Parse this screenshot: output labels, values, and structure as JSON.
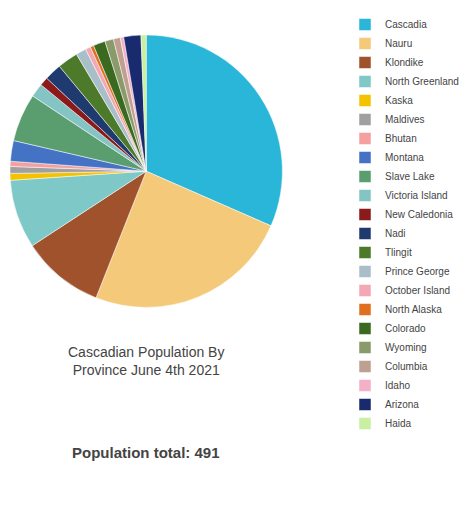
{
  "chart_data": {
    "type": "pie",
    "title": "Cascadian Population By\nProvince June 4th 2021",
    "subtitle": "Population total: 491",
    "categories": [
      "Cascadia",
      "Nauru",
      "Klondike",
      "North Greenland",
      "Kaska",
      "Maldives",
      "Bhutan",
      "Montana",
      "Slave Lake",
      "Victoria Island",
      "New Caledonia",
      "Nadi",
      "Tlingit",
      "Prince George",
      "October Island",
      "North Alaska",
      "Colorado",
      "Wyoming",
      "Columbia",
      "Idaho",
      "Arizona",
      "Haida"
    ],
    "values": [
      155,
      120,
      48,
      40,
      4,
      4,
      3,
      12,
      28,
      8,
      5,
      10,
      12,
      6,
      3,
      2,
      7,
      5,
      4,
      2,
      10,
      3
    ],
    "colors": [
      "#29B6D8",
      "#F5C97A",
      "#A0522D",
      "#7EC8C8",
      "#F5C200",
      "#A0A0A0",
      "#F4A0A0",
      "#4472C4",
      "#5A9E6F",
      "#85C4C4",
      "#8B1A1A",
      "#1F3A6E",
      "#4C7A2A",
      "#A8BFC9",
      "#F4A8B5",
      "#E07020",
      "#3A6A20",
      "#8A9A6A",
      "#BFA090",
      "#F4B0C8",
      "#1A2A6E",
      "#C8F0A0"
    ],
    "legend": "upper right"
  }
}
